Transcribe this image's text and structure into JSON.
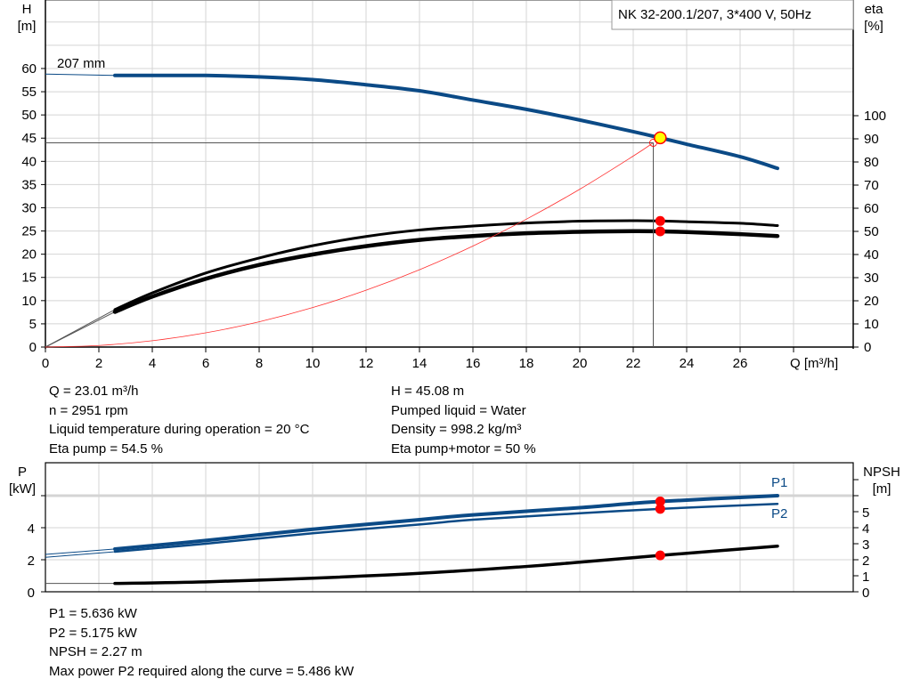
{
  "chart_data": [
    {
      "type": "line",
      "title": "NK 32-200.1/207, 3*400 V, 50Hz",
      "xlabel": "Q [m³/h]",
      "ylabel_left": "H\n[m]",
      "ylabel_left_lines": [
        "H",
        "[m]"
      ],
      "ylabel_right_lines": [
        "eta",
        "[%]"
      ],
      "xlim": [
        0,
        30
      ],
      "ylim_left": [
        0,
        74
      ],
      "ylim_right": [
        0,
        148
      ],
      "x_ticks": [
        "0",
        "2",
        "4",
        "6",
        "8",
        "10",
        "12",
        "14",
        "16",
        "18",
        "20",
        "22",
        "24",
        "26"
      ],
      "y_left_ticks": [
        "0",
        "5",
        "10",
        "15",
        "20",
        "25",
        "30",
        "35",
        "40",
        "45",
        "50",
        "55",
        "60"
      ],
      "y_right_ticks": [
        "0",
        "10",
        "20",
        "30",
        "40",
        "50",
        "60",
        "70",
        "80",
        "90",
        "100"
      ],
      "grid": true,
      "curve_label": "207 mm",
      "series": [
        {
          "key": "head",
          "axis": "left",
          "color": "#0b4a86",
          "extension": [
            [
              0,
              58.8
            ],
            [
              2.6,
              58.5
            ]
          ],
          "points": [
            [
              2.6,
              58.5
            ],
            [
              4,
              58.5
            ],
            [
              6,
              58.5
            ],
            [
              8,
              58.2
            ],
            [
              10,
              57.6
            ],
            [
              12,
              56.5
            ],
            [
              14,
              55.2
            ],
            [
              16,
              53.2
            ],
            [
              18,
              51.2
            ],
            [
              20,
              48.9
            ],
            [
              22,
              46.4
            ],
            [
              23,
              45.08
            ],
            [
              24,
              43.7
            ],
            [
              26,
              41.0
            ],
            [
              27.4,
              38.5
            ]
          ]
        },
        {
          "key": "eta-pump",
          "axis": "right",
          "color": "#000000",
          "extension": [
            [
              0,
              0
            ],
            [
              2.6,
              16.2
            ]
          ],
          "points": [
            [
              2.6,
              16.2
            ],
            [
              4,
              23.4
            ],
            [
              6,
              32
            ],
            [
              8,
              38.5
            ],
            [
              10,
              43.8
            ],
            [
              12,
              47.8
            ],
            [
              14,
              50.6
            ],
            [
              16,
              52.3
            ],
            [
              18,
              53.6
            ],
            [
              20,
              54.4
            ],
            [
              22,
              54.6
            ],
            [
              23,
              54.5
            ],
            [
              24,
              54.2
            ],
            [
              26,
              53.5
            ],
            [
              27.4,
              52.5
            ]
          ]
        },
        {
          "key": "eta-pump-motor",
          "axis": "right",
          "color": "#000000",
          "extension": [
            [
              0,
              0
            ],
            [
              2.6,
              15.2
            ]
          ],
          "points": [
            [
              2.6,
              15.2
            ],
            [
              4,
              21.8
            ],
            [
              6,
              29.5
            ],
            [
              8,
              35.5
            ],
            [
              10,
              40
            ],
            [
              12,
              43.6
            ],
            [
              14,
              46.3
            ],
            [
              16,
              48
            ],
            [
              18,
              49.2
            ],
            [
              20,
              49.8
            ],
            [
              22,
              50.1
            ],
            [
              23,
              50
            ],
            [
              24,
              49.7
            ],
            [
              26,
              48.8
            ],
            [
              27.4,
              48
            ]
          ]
        },
        {
          "key": "system-curve",
          "axis": "left",
          "color": "#ff3030",
          "points": [
            [
              0,
              0
            ],
            [
              2,
              0.34
            ],
            [
              4,
              1.36
            ],
            [
              6,
              3.06
            ],
            [
              8,
              5.44
            ],
            [
              10,
              8.5
            ],
            [
              12,
              12.24
            ],
            [
              14,
              16.66
            ],
            [
              16,
              21.76
            ],
            [
              18,
              27.54
            ],
            [
              20,
              34.0
            ],
            [
              22,
              41.14
            ],
            [
              22.75,
              44.0
            ]
          ]
        }
      ],
      "duty_point": {
        "Q": 23.01,
        "H": 45.08,
        "eta_pump": 54.5,
        "eta_pump_motor": 50
      },
      "system_point": {
        "Q": 22.75,
        "H": 44.0
      }
    },
    {
      "type": "line",
      "xlim": [
        0,
        30
      ],
      "ylabel_left_lines": [
        "P",
        "[kW]"
      ],
      "ylabel_right_lines": [
        "NPSH",
        "[m]"
      ],
      "ylim_left": [
        0,
        8
      ],
      "ylim_right": [
        0,
        8
      ],
      "y_left_ticks": [
        "0",
        "2",
        "4"
      ],
      "y_right_ticks": [
        "0",
        "1",
        "2",
        "3",
        "4",
        "5"
      ],
      "grid": true,
      "series": [
        {
          "name": "P1",
          "key": "p1",
          "axis": "left",
          "color": "#0b4a86",
          "extension": [
            [
              0,
              2.33
            ],
            [
              2.6,
              2.67
            ]
          ],
          "points": [
            [
              2.6,
              2.67
            ],
            [
              6,
              3.2
            ],
            [
              10,
              3.9
            ],
            [
              14,
              4.5
            ],
            [
              16,
              4.8
            ],
            [
              20,
              5.25
            ],
            [
              23,
              5.636
            ],
            [
              27.4,
              6.0
            ]
          ]
        },
        {
          "name": "P2",
          "key": "p2",
          "axis": "left",
          "color": "#0b4a86",
          "extension": [
            [
              0,
              2.15
            ],
            [
              2.6,
              2.5
            ]
          ],
          "points": [
            [
              2.6,
              2.5
            ],
            [
              6,
              3.0
            ],
            [
              10,
              3.65
            ],
            [
              14,
              4.2
            ],
            [
              16,
              4.5
            ],
            [
              20,
              4.9
            ],
            [
              23,
              5.175
            ],
            [
              27.4,
              5.486
            ]
          ]
        },
        {
          "key": "npsh",
          "axis": "right",
          "color": "#000000",
          "extension": [
            [
              0,
              0.52
            ],
            [
              2.6,
              0.52
            ]
          ],
          "points": [
            [
              2.6,
              0.52
            ],
            [
              6,
              0.62
            ],
            [
              10,
              0.85
            ],
            [
              14,
              1.15
            ],
            [
              18,
              1.58
            ],
            [
              20,
              1.85
            ],
            [
              23,
              2.27
            ],
            [
              27.4,
              2.85
            ]
          ]
        }
      ],
      "duty_point": {
        "Q": 23.01,
        "P1": 5.636,
        "P2": 5.175,
        "NPSH": 2.27
      }
    }
  ],
  "info_top": {
    "left": [
      "Q = 23.01 m³/h",
      "n = 2951 rpm",
      "Liquid temperature during operation = 20 °C",
      "Eta pump = 54.5 %"
    ],
    "right": [
      "H = 45.08 m",
      "Pumped liquid = Water",
      "Density = 998.2 kg/m³",
      "Eta pump+motor = 50 %"
    ]
  },
  "info_bottom": [
    "P1 = 5.636 kW",
    "P2 = 5.175 kW",
    "NPSH = 2.27 m",
    "Max power P2 required along the curve = 5.486 kW"
  ],
  "colors": {
    "head": "#0b4a86",
    "grid": "#d4d4d4",
    "duty_point_fill": "#ffff00",
    "marker": "#ff0000",
    "system_curve": "#ff3030"
  }
}
